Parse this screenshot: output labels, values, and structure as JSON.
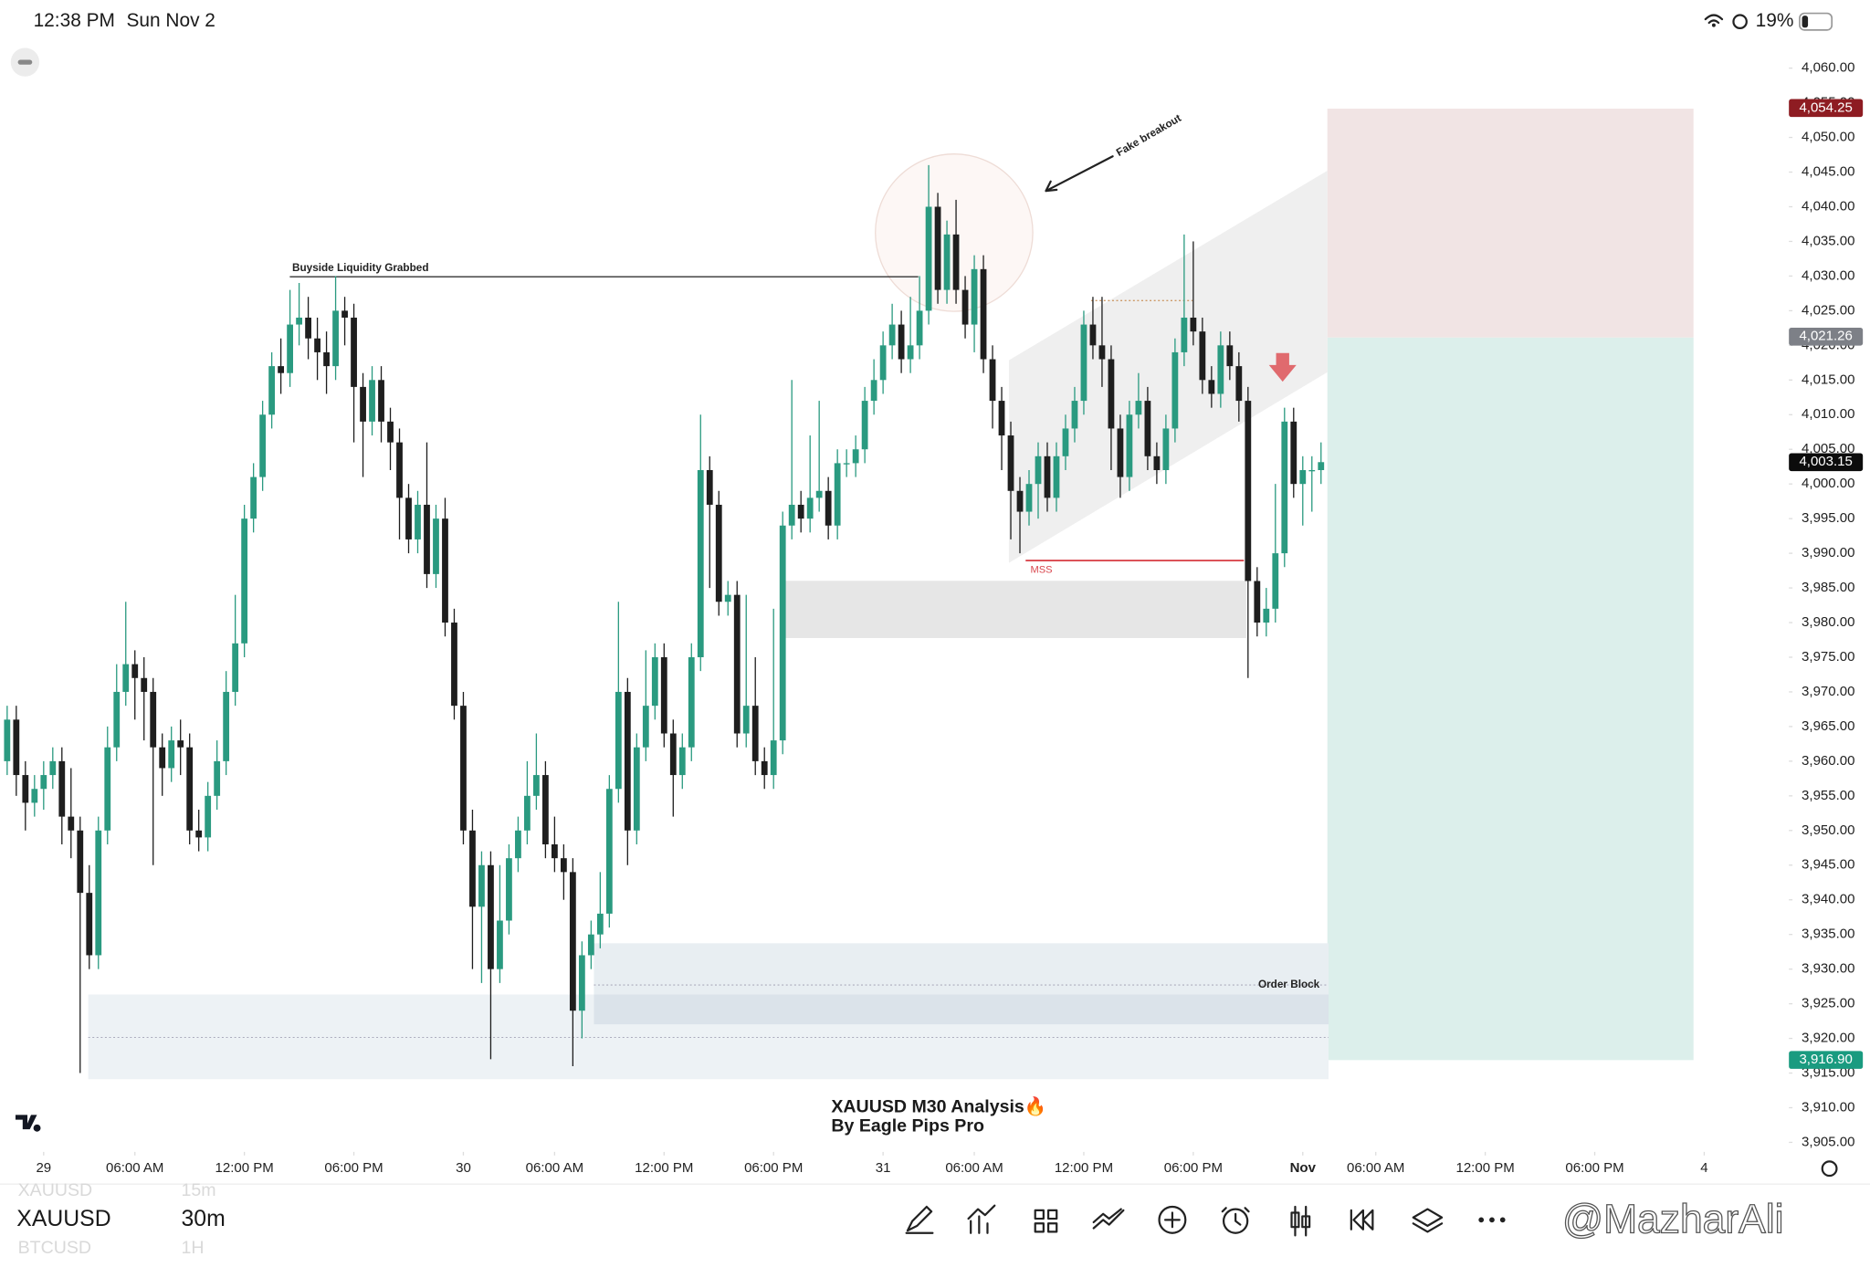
{
  "status": {
    "time": "12:38 PM",
    "date": "Sun Nov 2",
    "battery": "19%"
  },
  "symbols": [
    {
      "name": "XAUUSD",
      "interval": "15m"
    },
    {
      "name": "XAUUSD",
      "interval": "30m"
    },
    {
      "name": "BTCUSD",
      "interval": "1H"
    }
  ],
  "watermark": "@MazharAli",
  "chart_data": {
    "type": "candlestick",
    "title": "XAUUSD M30 Analysis🔥",
    "subtitle": "By Eagle Pips Pro",
    "annotations": [
      "Buyside Liquidity Grabbed",
      "Fake breakout",
      "MSS",
      "Order Block"
    ],
    "up_color": "#2a9a80",
    "down_color": "#1e1e1e",
    "xlim": [
      0,
      186
    ],
    "xticks": [
      {
        "value": 4,
        "label": "29"
      },
      {
        "value": 14,
        "label": "06:00 AM"
      },
      {
        "value": 26,
        "label": "12:00 PM"
      },
      {
        "value": 38,
        "label": "06:00 PM"
      },
      {
        "value": 50,
        "label": "30"
      },
      {
        "value": 60,
        "label": "06:00 AM"
      },
      {
        "value": 72,
        "label": "12:00 PM"
      },
      {
        "value": 84,
        "label": "06:00 PM"
      },
      {
        "value": 96,
        "label": "31"
      },
      {
        "value": 106,
        "label": "06:00 AM"
      },
      {
        "value": 118,
        "label": "12:00 PM"
      },
      {
        "value": 130,
        "label": "06:00 PM"
      },
      {
        "value": 142,
        "label": "Nov"
      },
      {
        "value": 150,
        "label": "06:00 AM"
      },
      {
        "value": 162,
        "label": "12:00 PM"
      },
      {
        "value": 174,
        "label": "06:00 PM"
      },
      {
        "value": 186,
        "label": "4"
      }
    ],
    "ylim": [
      3905,
      4060
    ],
    "yticks": [
      {
        "value": 3905,
        "label": "3,905.00"
      },
      {
        "value": 3910,
        "label": "3,910.00"
      },
      {
        "value": 3915,
        "label": "3,915.00"
      },
      {
        "value": 3920,
        "label": "3,920.00"
      },
      {
        "value": 3925,
        "label": "3,925.00"
      },
      {
        "value": 3930,
        "label": "3,930.00"
      },
      {
        "value": 3935,
        "label": "3,935.00"
      },
      {
        "value": 3940,
        "label": "3,940.00"
      },
      {
        "value": 3945,
        "label": "3,945.00"
      },
      {
        "value": 3950,
        "label": "3,950.00"
      },
      {
        "value": 3955,
        "label": "3,955.00"
      },
      {
        "value": 3960,
        "label": "3,960.00"
      },
      {
        "value": 3965,
        "label": "3,965.00"
      },
      {
        "value": 3970,
        "label": "3,970.00"
      },
      {
        "value": 3975,
        "label": "3,975.00"
      },
      {
        "value": 3980,
        "label": "3,980.00"
      },
      {
        "value": 3985,
        "label": "3,985.00"
      },
      {
        "value": 3990,
        "label": "3,990.00"
      },
      {
        "value": 3995,
        "label": "3,995.00"
      },
      {
        "value": 4000,
        "label": "4,000.00"
      },
      {
        "value": 4005,
        "label": "4,005.00"
      },
      {
        "value": 4010,
        "label": "4,010.00"
      },
      {
        "value": 4015,
        "label": "4,015.00"
      },
      {
        "value": 4020,
        "label": "4,020.00"
      },
      {
        "value": 4025,
        "label": "4,025.00"
      },
      {
        "value": 4030,
        "label": "4,030.00"
      },
      {
        "value": 4035,
        "label": "4,035.00"
      },
      {
        "value": 4040,
        "label": "4,040.00"
      },
      {
        "value": 4045,
        "label": "4,045.00"
      },
      {
        "value": 4050,
        "label": "4,050.00"
      },
      {
        "value": 4055,
        "label": "4,055.00"
      },
      {
        "value": 4060,
        "label": "4,060.00"
      }
    ],
    "price_labels": [
      {
        "value": 4054.25,
        "label": "4,054.25",
        "color": "#8e1c22"
      },
      {
        "value": 4021.26,
        "label": "4,021.26",
        "color": "#7d8087"
      },
      {
        "value": 4003.15,
        "label": "4,003.15",
        "color": "#0c0c0c"
      },
      {
        "value": 3916.9,
        "label": "3,916.90",
        "color": "#1a9b80"
      }
    ],
    "open": [
      3960,
      3966,
      3958,
      3954,
      3956,
      3958,
      3960,
      3952,
      3950,
      3941,
      3932,
      3950,
      3962,
      3970,
      3974,
      3972,
      3970,
      3962,
      3959,
      3963,
      3962,
      3950,
      3949,
      3955,
      3960,
      3970,
      3977,
      3995,
      4001,
      4010,
      4017,
      4016,
      4023,
      4024,
      4021,
      4019,
      4017,
      4025,
      4024,
      4014,
      4009,
      4015,
      4009,
      4006,
      3998,
      3992,
      3997,
      3987,
      3995,
      3980,
      3968,
      3950,
      3939,
      3945,
      3930,
      3937,
      3946,
      3950,
      3955,
      3958,
      3948,
      3946,
      3944,
      3924,
      3932,
      3935,
      3938,
      3956,
      3970,
      3950,
      3962,
      3968,
      3975,
      3964,
      3958,
      3962,
      3975,
      4002,
      3997,
      3983,
      3984,
      3964,
      3968,
      3960,
      3958,
      3963,
      3994,
      3997,
      3995,
      3998,
      3999,
      3994,
      4003,
      4003,
      4005,
      4012,
      4015,
      4020,
      4023,
      4018,
      4020,
      4025,
      4040,
      4028,
      4036,
      4028,
      4023,
      4031,
      4018,
      4012,
      4007,
      3999,
      3996,
      4000,
      4004,
      3998,
      4004,
      4008,
      4012,
      4023,
      4020,
      4018,
      4008,
      4001,
      4010,
      4012,
      4004,
      4002,
      4008,
      4019,
      4024,
      4022,
      4015,
      4013,
      4020,
      4017,
      4012,
      3986,
      3980,
      3982,
      3990,
      4009,
      4000,
      4002,
      4002
    ],
    "high": [
      3968,
      3968,
      3960,
      3958,
      3960,
      3962,
      3962,
      3959,
      3952,
      3945,
      3952,
      3965,
      3974,
      3983,
      3976,
      3975,
      3972,
      3964,
      3965,
      3966,
      3964,
      3953,
      3957,
      3963,
      3973,
      3984,
      3997,
      4003,
      4012,
      4019,
      4021,
      4028,
      4029,
      4027,
      4024,
      4022,
      4030,
      4027,
      4026,
      4016,
      4017,
      4017,
      4011,
      4008,
      4000,
      3999,
      4006,
      3997,
      3998,
      3982,
      3970,
      3953,
      3947,
      3947,
      3945,
      3948,
      3952,
      3960,
      3964,
      3960,
      3952,
      3948,
      3946,
      3934,
      3937,
      3944,
      3958,
      3983,
      3972,
      3964,
      3976,
      3977,
      3977,
      3966,
      3964,
      3977,
      4010,
      4004,
      3999,
      3986,
      3986,
      3984,
      3975,
      3962,
      3982,
      3996,
      4015,
      3999,
      4007,
      4012,
      4001,
      4005,
      4005,
      4007,
      4014,
      4018,
      4022,
      4026,
      4025,
      4027,
      4030,
      4046,
      4042,
      4038,
      4041,
      4030,
      4033,
      4033,
      4020,
      4014,
      4009,
      4001,
      4002,
      4006,
      4006,
      4006,
      4010,
      4014,
      4025,
      4027,
      4027,
      4020,
      4010,
      4012,
      4016,
      4014,
      4006,
      4010,
      4021,
      4036,
      4035,
      4024,
      4017,
      4022,
      4022,
      4019,
      4014,
      3988,
      3985,
      4000,
      4011,
      4011,
      4004,
      4004,
      4006
    ],
    "low": [
      3958,
      3955,
      3950,
      3952,
      3953,
      3956,
      3948,
      3946,
      3915,
      3930,
      3930,
      3948,
      3960,
      3968,
      3966,
      3963,
      3945,
      3955,
      3957,
      3958,
      3948,
      3947,
      3947,
      3953,
      3958,
      3968,
      3975,
      3993,
      3999,
      4008,
      4013,
      4014,
      4020,
      4018,
      4015,
      4013,
      4015,
      4020,
      4006,
      4001,
      4007,
      4006,
      4002,
      3992,
      3990,
      3990,
      3985,
      3985,
      3978,
      3966,
      3948,
      3930,
      3928,
      3917,
      3928,
      3935,
      3944,
      3948,
      3953,
      3946,
      3944,
      3940,
      3916,
      3920,
      3930,
      3933,
      3936,
      3954,
      3945,
      3948,
      3960,
      3966,
      3962,
      3952,
      3956,
      3960,
      3973,
      3985,
      3981,
      3981,
      3962,
      3962,
      3958,
      3956,
      3956,
      3961,
      3992,
      3993,
      3993,
      3996,
      3992,
      3992,
      4001,
      4001,
      4003,
      4010,
      4013,
      4018,
      4016,
      4016,
      4018,
      4023,
      4026,
      4026,
      4026,
      4021,
      4019,
      4016,
      4008,
      4002,
      3992,
      3990,
      3994,
      3995,
      3996,
      3996,
      4002,
      4006,
      4010,
      4018,
      4014,
      4002,
      3998,
      3999,
      4008,
      4002,
      4000,
      4000,
      4006,
      4017,
      4020,
      4013,
      4011,
      4011,
      4015,
      4009,
      3972,
      3978,
      3978,
      3980,
      3988,
      3998,
      3994,
      3996,
      4000
    ],
    "close": [
      3966,
      3958,
      3954,
      3956,
      3958,
      3960,
      3952,
      3950,
      3941,
      3932,
      3950,
      3962,
      3970,
      3974,
      3972,
      3970,
      3962,
      3959,
      3963,
      3962,
      3950,
      3949,
      3955,
      3960,
      3970,
      3977,
      3995,
      4001,
      4010,
      4017,
      4016,
      4023,
      4024,
      4021,
      4019,
      4017,
      4025,
      4024,
      4014,
      4009,
      4015,
      4009,
      4006,
      3998,
      3992,
      3997,
      3987,
      3995,
      3980,
      3968,
      3950,
      3939,
      3945,
      3930,
      3937,
      3946,
      3950,
      3955,
      3958,
      3948,
      3946,
      3944,
      3924,
      3932,
      3935,
      3938,
      3956,
      3970,
      3950,
      3962,
      3968,
      3975,
      3964,
      3958,
      3962,
      3975,
      4002,
      3997,
      3983,
      3984,
      3964,
      3968,
      3960,
      3958,
      3963,
      3994,
      3997,
      3995,
      3998,
      3999,
      3994,
      4003,
      4003,
      4005,
      4012,
      4015,
      4020,
      4023,
      4018,
      4020,
      4025,
      4040,
      4028,
      4036,
      4028,
      4023,
      4031,
      4018,
      4012,
      4007,
      3999,
      3996,
      4000,
      4004,
      3998,
      4004,
      4008,
      4012,
      4023,
      4020,
      4018,
      4008,
      4001,
      4010,
      4012,
      4004,
      4002,
      4008,
      4019,
      4024,
      4022,
      4015,
      4013,
      4020,
      4017,
      4012,
      3986,
      3980,
      3982,
      3990,
      4009,
      4000,
      4002,
      4002,
      4003.15
    ]
  }
}
